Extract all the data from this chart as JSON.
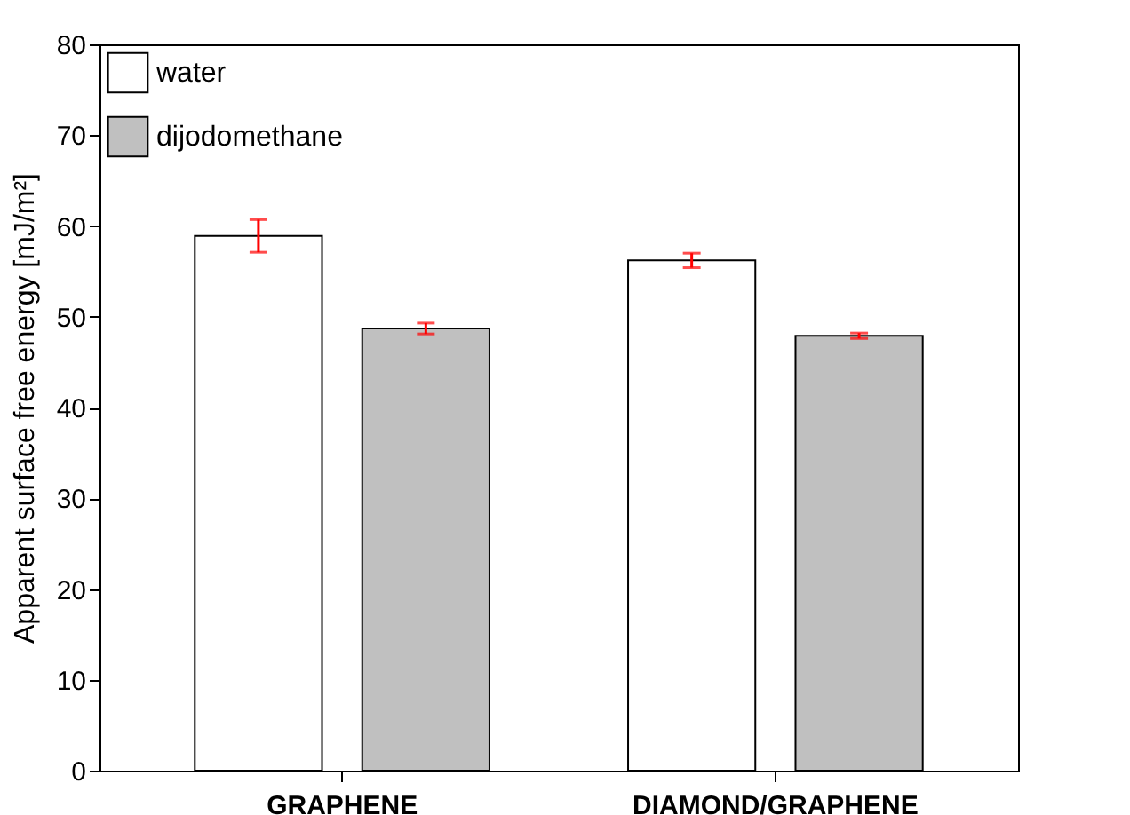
{
  "chart_data": {
    "type": "bar",
    "ylabel": "Apparent surface free energy [mJ/m²]",
    "categories": [
      "GRAPHENE",
      "DIAMOND/GRAPHENE"
    ],
    "series": [
      {
        "name": "water",
        "color": "#ffffff",
        "values": [
          58.9,
          56.2
        ],
        "errors": [
          1.8,
          0.8
        ]
      },
      {
        "name": "dijodomethane",
        "color": "#c0c0c0",
        "values": [
          48.7,
          47.9
        ],
        "errors": [
          0.6,
          0.3
        ]
      }
    ],
    "ylim": [
      0,
      80
    ],
    "yticks": [
      0,
      10,
      20,
      30,
      40,
      50,
      60,
      70,
      80
    ],
    "grid": false,
    "legend": "top left"
  }
}
